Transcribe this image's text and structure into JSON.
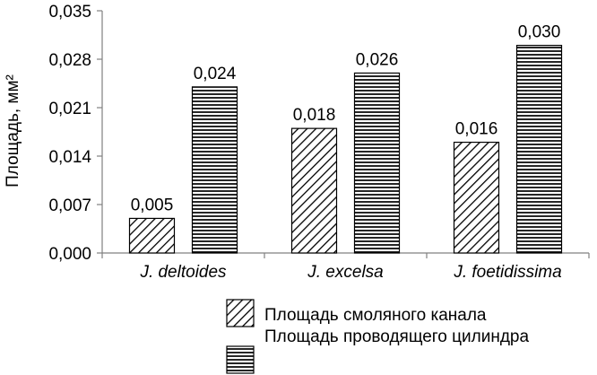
{
  "chart_data": {
    "type": "bar",
    "title": "",
    "xlabel": "",
    "ylabel": "Площадь, мм²",
    "categories": [
      "J. deltoides",
      "J. excelsa",
      "J. foetidissima"
    ],
    "series": [
      {
        "name": "Площадь смоляного канала",
        "values": [
          0.005,
          0.018,
          0.016
        ],
        "labels": [
          "0,005",
          "0,018",
          "0,016"
        ],
        "pattern": "diagonal-hatch"
      },
      {
        "name": "Площадь проводящего цилиндра",
        "values": [
          0.024,
          0.026,
          0.03
        ],
        "labels": [
          "0,024",
          "0,026",
          "0,030"
        ],
        "pattern": "horizontal-lines"
      }
    ],
    "ylim": [
      0,
      0.035
    ],
    "yticks": [
      0,
      0.007,
      0.014,
      0.021,
      0.028,
      0.035
    ],
    "ytick_labels": [
      "0,000",
      "0,007",
      "0,014",
      "0,021",
      "0,028",
      "0,035"
    ],
    "grid": false,
    "legend_position": "bottom-right",
    "colors": {
      "bar_fill": "#ffffff",
      "stroke": "#000000",
      "axis": "#808080"
    }
  }
}
